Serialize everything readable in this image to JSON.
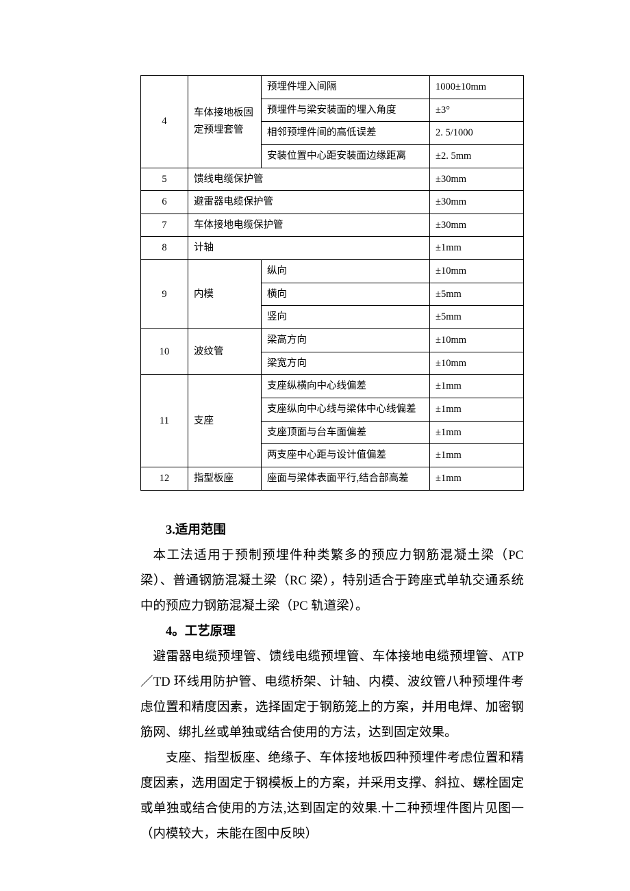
{
  "table": {
    "rows": [
      {
        "num": "4",
        "name": "车体接地板固定预埋套管",
        "span": 4,
        "items": [
          {
            "desc": "预埋件埋入间隔",
            "val": "1000±10mm"
          },
          {
            "desc": "预埋件与梁安装面的埋入角度",
            "val": "±3°"
          },
          {
            "desc": "相邻预埋件间的高低误差",
            "val": "2. 5/1000"
          },
          {
            "desc": "安装位置中心距安装面边缘距离",
            "val": "±2. 5mm"
          }
        ]
      },
      {
        "num": "5",
        "merged": "馈线电缆保护管",
        "val": "±30mm"
      },
      {
        "num": "6",
        "merged": "避雷器电缆保护管",
        "val": "±30mm"
      },
      {
        "num": "7",
        "merged": "车体接地电缆保护管",
        "val": "±30mm"
      },
      {
        "num": "8",
        "merged": "计轴",
        "val": "±1mm"
      },
      {
        "num": "9",
        "name": "内模",
        "span": 3,
        "items": [
          {
            "desc": "纵向",
            "val": "±10mm"
          },
          {
            "desc": "横向",
            "val": "±5mm"
          },
          {
            "desc": "竖向",
            "val": "±5mm"
          }
        ]
      },
      {
        "num": "10",
        "name": "波纹管",
        "span": 2,
        "items": [
          {
            "desc": "梁高方向",
            "val": "±10mm"
          },
          {
            "desc": "梁宽方向",
            "val": "±10mm"
          }
        ]
      },
      {
        "num": "11",
        "name": "支座",
        "span": 4,
        "items": [
          {
            "desc": "支座纵横向中心线偏差",
            "val": "±1mm"
          },
          {
            "desc": "支座纵向中心线与梁体中心线偏差",
            "val": "±1mm"
          },
          {
            "desc": "支座顶面与台车面偏差",
            "val": "±1mm"
          },
          {
            "desc": "两支座中心距与设计值偏差",
            "val": "±1mm"
          }
        ]
      },
      {
        "num": "12",
        "name": "指型板座",
        "span": 1,
        "items": [
          {
            "desc": "座面与梁体表面平行,结合部高差",
            "val": "±1mm"
          }
        ]
      }
    ]
  },
  "sections": {
    "h3": "3.适用范围",
    "p3": "本工法适用于预制预埋件种类繁多的预应力钢筋混凝土梁（PC 梁）、普通钢筋混凝土梁（RC 梁），特别适合于跨座式单轨交通系统中的预应力钢筋混凝土梁（PC 轨道梁）。",
    "h4": "4。工艺原理",
    "p4a": "避雷器电缆预埋管、馈线电缆预埋管、车体接地电缆预埋管、ATP／TD 环线用防护管、电缆桥架、计轴、内模、波纹管八种预埋件考虑位置和精度因素，选择固定于钢筋笼上的方案，并用电焊、加密钢筋网、绑扎丝或单独或结合使用的方法，达到固定效果。",
    "p4b": "支座、指型板座、绝缘子、车体接地板四种预埋件考虑位置和精度因素，选用固定于钢模板上的方案，并采用支撑、斜拉、螺栓固定或单独或结合使用的方法,达到固定的效果.十二种预埋件图片见图一（内模较大，未能在图中反映）"
  }
}
